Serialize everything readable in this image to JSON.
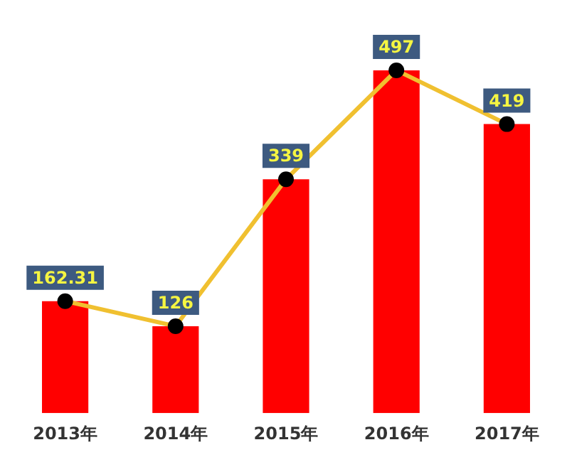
{
  "chart_data": {
    "type": "bar",
    "categories": [
      "2013年",
      "2014年",
      "2015年",
      "2016年",
      "2017年"
    ],
    "series": [
      {
        "color": "#ff0000",
        "values": [
          162.31,
          126,
          339,
          497,
          419
        ]
      },
      {
        "type": "line",
        "color": "#f0c030",
        "values": [
          162.31,
          126,
          339,
          497,
          419
        ],
        "value_labels": [
          "162.31",
          "126",
          "339",
          "497",
          "419"
        ]
      }
    ],
    "tick_labels": "x",
    "legend": false,
    "marker": "circle",
    "line_style": "solid"
  }
}
